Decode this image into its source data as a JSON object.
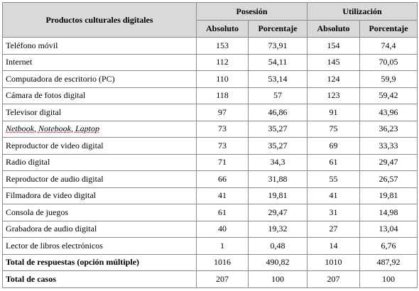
{
  "table": {
    "header": {
      "title": "Productos culturales digitales",
      "groups": [
        "Posesión",
        "Utilización"
      ],
      "subheaders": [
        "Absoluto",
        "Porcentaje",
        "Absoluto",
        "Porcentaje"
      ]
    },
    "rows": [
      [
        "Teléfono móvil",
        153,
        "73,91",
        154,
        "74,4"
      ],
      [
        "Internet",
        112,
        "54,11",
        145,
        "70,05"
      ],
      [
        "Computadora de escritorio (PC)",
        110,
        "53,14",
        124,
        "59,9"
      ],
      [
        "Cámara de fotos digital",
        118,
        57,
        123,
        "59,42"
      ],
      [
        "Televisor digital",
        97,
        "46,86",
        91,
        "43,96"
      ],
      [
        "Netbook, Notebook, Laptop",
        73,
        "35,27",
        75,
        "36,23"
      ],
      [
        "Reproductor de video digital",
        73,
        "35,27",
        69,
        "33,33"
      ],
      [
        "Radio digital",
        71,
        "34,3",
        61,
        "29,47"
      ],
      [
        "Reproductor de audio digital",
        66,
        "31,88",
        55,
        "26,57"
      ],
      [
        "Filmadora de video digital",
        41,
        "19,81",
        41,
        "19,81"
      ],
      [
        "Consola de juegos",
        61,
        "29,47",
        31,
        "14,98"
      ],
      [
        "Grabadora de audio digital",
        40,
        "19,32",
        27,
        "13,04"
      ],
      [
        "Lector de libros electrónicos",
        1,
        "0,48",
        14,
        "6,76"
      ],
      [
        "Total de respuestas (opción múltiple)",
        1016,
        "490,82",
        1010,
        "487,92"
      ],
      [
        "Total de casos",
        207,
        100,
        207,
        100
      ]
    ]
  }
}
